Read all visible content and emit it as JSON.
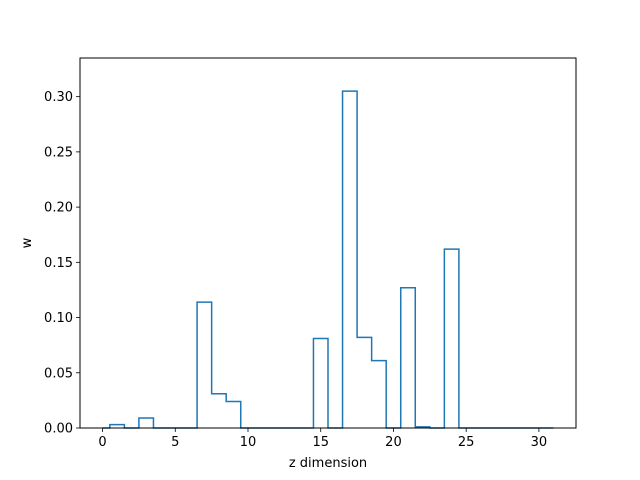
{
  "chart_data": {
    "type": "step",
    "title": "",
    "xlabel": "z dimension",
    "ylabel": "w",
    "xlim": [
      -1.55,
      32.55
    ],
    "ylim": [
      0,
      0.335
    ],
    "xticks": [
      0,
      5,
      10,
      15,
      20,
      25,
      30
    ],
    "xtick_labels": [
      "0",
      "5",
      "10",
      "15",
      "20",
      "25",
      "30"
    ],
    "yticks": [
      0,
      0.05,
      0.1,
      0.15,
      0.2,
      0.25,
      0.3
    ],
    "ytick_labels": [
      "0.00",
      "0.05",
      "0.10",
      "0.15",
      "0.20",
      "0.25",
      "0.30"
    ],
    "grid": false,
    "line_color": "#1f77b4",
    "x": [
      0,
      1,
      2,
      3,
      4,
      5,
      6,
      7,
      8,
      9,
      10,
      11,
      12,
      13,
      14,
      15,
      16,
      17,
      18,
      19,
      20,
      21,
      22,
      23,
      24,
      25,
      26,
      27,
      28,
      29,
      30,
      31
    ],
    "values": [
      0.0,
      0.003,
      0.0,
      0.009,
      0.0,
      0.0,
      0.0,
      0.114,
      0.031,
      0.024,
      0.0,
      0.0,
      0.0,
      0.0,
      0.0,
      0.081,
      0.0,
      0.305,
      0.082,
      0.061,
      0.0,
      0.127,
      0.001,
      0.0,
      0.162,
      0.0,
      0.0,
      0.0,
      0.0,
      0.0,
      0.0,
      0.0
    ]
  }
}
